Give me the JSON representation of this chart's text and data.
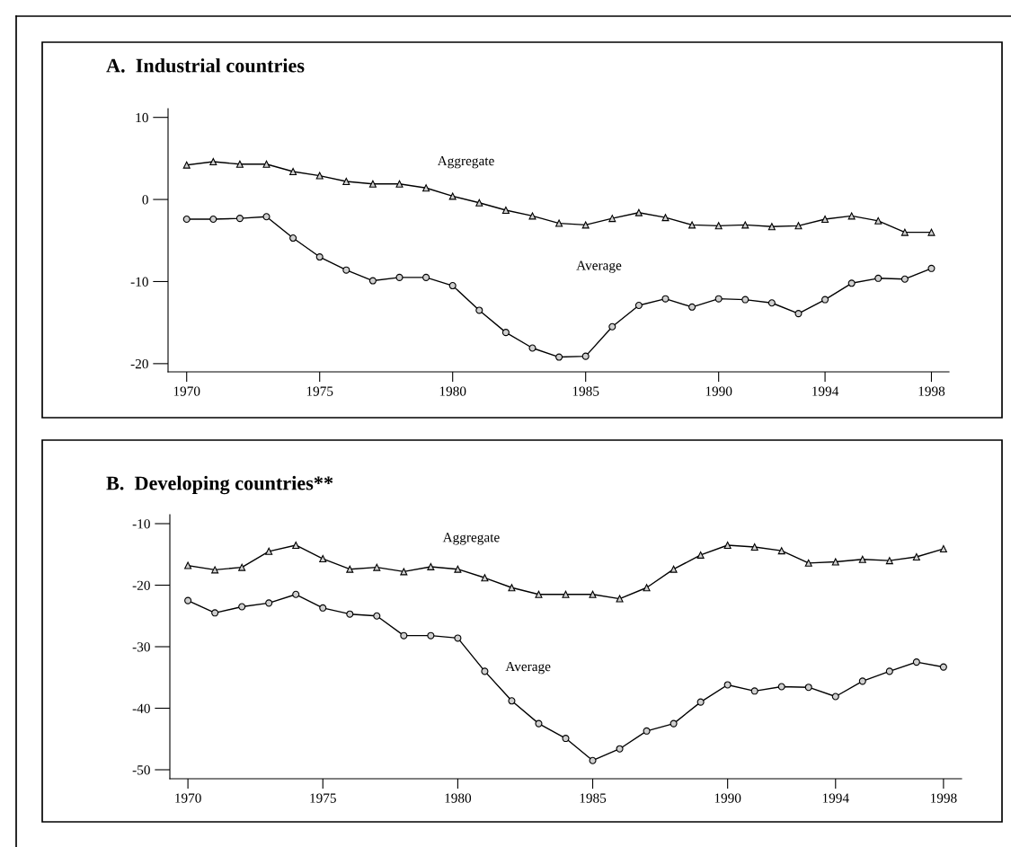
{
  "chart_data": [
    {
      "type": "line",
      "title": "A.  Industrial countries",
      "x": [
        1970,
        1971,
        1972,
        1973,
        1974,
        1975,
        1976,
        1977,
        1978,
        1979,
        1980,
        1981,
        1982,
        1983,
        1984,
        1985,
        1986,
        1987,
        1988,
        1989,
        1990,
        1991,
        1992,
        1993,
        1994,
        1995,
        1996,
        1997,
        1998
      ],
      "series": [
        {
          "name": "Aggregate",
          "color": "#000000",
          "marker": "triangle",
          "values": [
            4.2,
            4.6,
            4.3,
            4.3,
            3.4,
            2.9,
            2.2,
            1.9,
            1.9,
            1.4,
            0.4,
            -0.4,
            -1.3,
            -2.0,
            -2.9,
            -3.1,
            -2.3,
            -1.6,
            -2.2,
            -3.1,
            -3.2,
            -3.1,
            -3.3,
            -3.2,
            -2.4,
            -2.0,
            -2.6,
            -4.0,
            -4.0
          ]
        },
        {
          "name": "Average",
          "color": "#000000",
          "marker": "circle",
          "values": [
            -2.4,
            -2.4,
            -2.3,
            -2.1,
            -4.7,
            -7.0,
            -8.6,
            -9.9,
            -9.5,
            -9.5,
            -10.5,
            -13.5,
            -16.2,
            -18.1,
            -19.2,
            -19.1,
            -15.5,
            -12.9,
            -12.1,
            -13.1,
            -12.1,
            -12.2,
            -12.6,
            -13.9,
            -12.2,
            -10.2,
            -9.6,
            -9.7,
            -8.4
          ]
        }
      ],
      "xlim": [
        1969.3,
        1998.66
      ],
      "xticks": [
        1970,
        1975,
        1980,
        1985,
        1990,
        1994,
        1998
      ],
      "ylim": [
        -21.0,
        11.06
      ],
      "yticks": [
        -20,
        -10,
        0,
        10
      ],
      "grid": false,
      "legend": false
    },
    {
      "type": "line",
      "title": "B.  Developing countries**",
      "x": [
        1970,
        1971,
        1972,
        1973,
        1974,
        1975,
        1976,
        1977,
        1978,
        1979,
        1980,
        1981,
        1982,
        1983,
        1984,
        1985,
        1986,
        1987,
        1988,
        1989,
        1990,
        1991,
        1992,
        1993,
        1994,
        1995,
        1996,
        1997,
        1998
      ],
      "series": [
        {
          "name": "Aggregate",
          "color": "#000000",
          "marker": "triangle",
          "values": [
            -16.8,
            -17.5,
            -17.1,
            -14.5,
            -13.5,
            -15.7,
            -17.4,
            -17.1,
            -17.8,
            -17.0,
            -17.4,
            -18.8,
            -20.4,
            -21.5,
            -21.5,
            -21.5,
            -22.2,
            -20.4,
            -17.4,
            -15.1,
            -13.5,
            -13.8,
            -14.4,
            -16.4,
            -16.2,
            -15.8,
            -16.0,
            -15.4,
            -14.1
          ]
        },
        {
          "name": "Average",
          "color": "#000000",
          "marker": "circle",
          "values": [
            -22.5,
            -24.5,
            -23.5,
            -22.9,
            -21.5,
            -23.7,
            -24.7,
            -25.0,
            -28.2,
            -28.2,
            -28.6,
            -34.0,
            -38.8,
            -42.5,
            -44.9,
            -48.5,
            -46.6,
            -43.7,
            -42.5,
            -39.0,
            -36.2,
            -37.2,
            -36.5,
            -36.6,
            -38.1,
            -35.6,
            -34.0,
            -32.5,
            -33.3
          ]
        }
      ],
      "xlim": [
        1969.33,
        1998.67
      ],
      "xticks": [
        1970,
        1975,
        1980,
        1985,
        1990,
        1994,
        1998
      ],
      "ylim": [
        -51.46,
        -8.54
      ],
      "yticks": [
        -50,
        -40,
        -30,
        -20,
        -10
      ],
      "grid": false,
      "legend": false
    }
  ]
}
